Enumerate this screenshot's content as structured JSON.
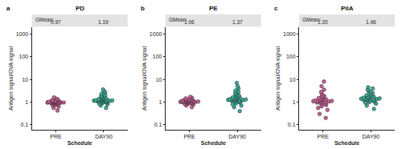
{
  "chart_data": [
    {
      "type": "strip",
      "panel": "a",
      "title": "PD",
      "x_label": "Schedule",
      "y_label": "Antigen signal/OVA signal",
      "categories": [
        "PRE",
        "DAY90"
      ],
      "colors": [
        "#d4609a",
        "#35b39b"
      ],
      "marker": "circle",
      "points": [
        [
          0.42,
          0.55,
          0.62,
          0.7,
          0.75,
          0.8,
          0.83,
          0.85,
          0.88,
          0.9,
          0.9,
          0.92,
          0.93,
          0.95,
          0.95,
          0.96,
          0.97,
          0.98,
          0.99,
          1.0,
          1.0,
          1.01,
          1.02,
          1.03,
          1.05,
          1.06,
          1.08,
          1.1,
          1.12,
          1.15,
          1.18,
          1.22,
          1.28,
          1.35,
          1.5,
          1.6
        ],
        [
          0.55,
          0.7,
          0.8,
          0.85,
          0.9,
          0.95,
          1.0,
          1.02,
          1.05,
          1.08,
          1.1,
          1.1,
          1.12,
          1.15,
          1.15,
          1.18,
          1.2,
          1.2,
          1.22,
          1.25,
          1.28,
          1.3,
          1.32,
          1.35,
          1.4,
          1.45,
          1.5,
          1.6,
          1.7,
          1.85,
          2.0,
          2.3,
          2.6,
          3.0,
          3.6
        ]
      ],
      "gmean_label": "GMean:",
      "gmean": [
        {
          "value": 0.97,
          "label": "0.97"
        },
        {
          "value": 1.19,
          "label": "1.19"
        }
      ],
      "log": "y",
      "ylim": [
        0.06,
        2000
      ],
      "yticks": [
        0.1,
        1,
        10,
        100,
        1000
      ]
    },
    {
      "type": "strip",
      "panel": "b",
      "title": "PE",
      "x_label": "Schedule",
      "y_label": "Antigen signal/OVA signal",
      "categories": [
        "PRE",
        "DAY90"
      ],
      "colors": [
        "#d4609a",
        "#35b39b"
      ],
      "marker": "circle",
      "points": [
        [
          0.6,
          0.7,
          0.78,
          0.82,
          0.85,
          0.88,
          0.9,
          0.92,
          0.94,
          0.96,
          0.98,
          1.0,
          1.0,
          1.02,
          1.03,
          1.05,
          1.06,
          1.07,
          1.08,
          1.1,
          1.1,
          1.12,
          1.14,
          1.16,
          1.18,
          1.2,
          1.22,
          1.25,
          1.28,
          1.32,
          1.38,
          1.45,
          1.55,
          1.7
        ],
        [
          0.4,
          0.6,
          0.7,
          0.8,
          0.88,
          0.95,
          1.0,
          1.05,
          1.1,
          1.15,
          1.18,
          1.2,
          1.22,
          1.25,
          1.28,
          1.3,
          1.32,
          1.35,
          1.38,
          1.4,
          1.45,
          1.5,
          1.55,
          1.6,
          1.7,
          1.8,
          1.9,
          2.0,
          2.2,
          2.5,
          2.8,
          3.2,
          4.0,
          5.0,
          7.0
        ]
      ],
      "gmean_label": "GMean:",
      "gmean": [
        {
          "value": 1.06,
          "label": "1.06"
        },
        {
          "value": 1.37,
          "label": "1.37"
        }
      ],
      "log": "y",
      "ylim": [
        0.06,
        2000
      ],
      "yticks": [
        0.1,
        1,
        10,
        100,
        1000
      ]
    },
    {
      "type": "strip",
      "panel": "c",
      "title": "PilA",
      "x_label": "Schedule",
      "y_label": "Antigen signal/OVA signal",
      "categories": [
        "PRE",
        "DAY90"
      ],
      "colors": [
        "#d4609a",
        "#35b39b"
      ],
      "marker": "circle",
      "points": [
        [
          0.2,
          0.3,
          0.45,
          0.55,
          0.65,
          0.75,
          0.8,
          0.85,
          0.9,
          0.95,
          1.0,
          1.02,
          1.05,
          1.08,
          1.1,
          1.12,
          1.15,
          1.18,
          1.2,
          1.25,
          1.3,
          1.35,
          1.4,
          1.5,
          1.6,
          1.7,
          1.8,
          2.0,
          2.3,
          2.8,
          3.5,
          5.0,
          8.0
        ],
        [
          0.5,
          0.7,
          0.85,
          0.95,
          1.0,
          1.05,
          1.1,
          1.15,
          1.2,
          1.25,
          1.3,
          1.32,
          1.35,
          1.4,
          1.42,
          1.45,
          1.5,
          1.55,
          1.6,
          1.65,
          1.7,
          1.8,
          1.9,
          2.0,
          2.1,
          2.3,
          2.5,
          2.8,
          3.1,
          3.5,
          4.0,
          4.5
        ]
      ],
      "gmean_label": "GMean:",
      "gmean": [
        {
          "value": 1.2,
          "label": "1.20"
        },
        {
          "value": 1.46,
          "label": "1.46"
        }
      ],
      "log": "y",
      "ylim": [
        0.06,
        2000
      ],
      "yticks": [
        0.1,
        1,
        10,
        100,
        1000
      ]
    }
  ]
}
